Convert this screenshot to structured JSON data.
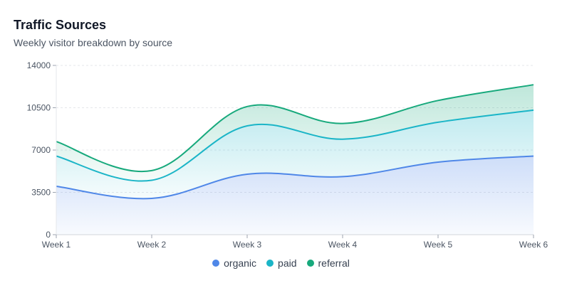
{
  "title": "Traffic Sources",
  "subtitle": "Weekly visitor breakdown by source",
  "chart_data": {
    "type": "area",
    "stacked": true,
    "title": "Traffic Sources",
    "subtitle": "Weekly visitor breakdown by source",
    "categories": [
      "Week 1",
      "Week 2",
      "Week 3",
      "Week 4",
      "Week 5",
      "Week 6"
    ],
    "series": [
      {
        "name": "organic",
        "color": "#4f87e8",
        "values": [
          4000,
          3000,
          5000,
          4800,
          6000,
          6500
        ]
      },
      {
        "name": "paid",
        "color": "#1bb5c7",
        "values": [
          2500,
          1500,
          4000,
          3100,
          3300,
          3800
        ]
      },
      {
        "name": "referral",
        "color": "#17a97c",
        "values": [
          1200,
          800,
          1600,
          1300,
          1800,
          2100
        ]
      }
    ],
    "yticks": [
      0,
      3500,
      7000,
      10500,
      14000
    ],
    "ylim": [
      0,
      14000
    ],
    "xlabel": "",
    "ylabel": "",
    "grid": true,
    "legend": "bottom-center"
  }
}
